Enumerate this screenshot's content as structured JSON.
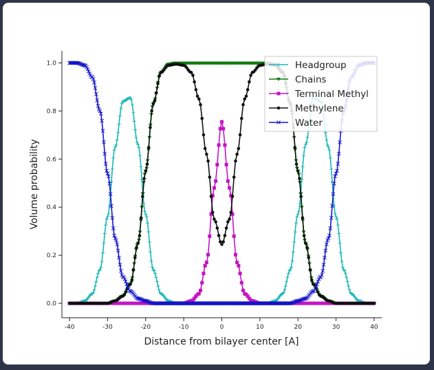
{
  "chart_data": {
    "type": "line",
    "xlabel": "Distance from bilayer center [A]",
    "ylabel": "Volume probability",
    "xlim": [
      -42,
      42
    ],
    "ylim": [
      -0.06,
      1.05
    ],
    "x_ticks": [
      -40,
      -30,
      -20,
      -10,
      0,
      10,
      20,
      30,
      40
    ],
    "y_ticks": [
      0.0,
      0.2,
      0.4,
      0.6,
      0.8,
      1.0
    ],
    "x_tick_labels": [
      "-40",
      "-30",
      "-20",
      "-10",
      "0",
      "10",
      "20",
      "30",
      "40"
    ],
    "y_tick_labels": [
      "0.0",
      "0.2",
      "0.4",
      "0.6",
      "0.8",
      "1.0"
    ],
    "legend": "top-right",
    "grid": false,
    "x": [
      -40,
      -38,
      -36,
      -34,
      -32,
      -30,
      -28,
      -26,
      -24,
      -22,
      -20,
      -18,
      -16,
      -14,
      -12,
      -10,
      -8,
      -6,
      -4,
      -2,
      0,
      2,
      4,
      6,
      8,
      10,
      12,
      14,
      16,
      18,
      20,
      22,
      24,
      26,
      28,
      30,
      32,
      34,
      36,
      38,
      40
    ],
    "series": [
      {
        "name": "Headgroup",
        "color": "#1ab6b6",
        "marker": "plus",
        "values": [
          0.0,
          0.0,
          0.01,
          0.04,
          0.14,
          0.36,
          0.65,
          0.84,
          0.855,
          0.66,
          0.37,
          0.14,
          0.04,
          0.01,
          0.0,
          0.0,
          0.0,
          0.0,
          0.0,
          0.0,
          0.0,
          0.0,
          0.0,
          0.0,
          0.0,
          0.0,
          0.0,
          0.01,
          0.04,
          0.14,
          0.37,
          0.66,
          0.855,
          0.84,
          0.65,
          0.36,
          0.14,
          0.04,
          0.01,
          0.0,
          0.0
        ]
      },
      {
        "name": "Chains",
        "color": "#0e7a0e",
        "marker": "triangle-down",
        "values": [
          0.0,
          0.0,
          0.0,
          0.0,
          0.0,
          0.0,
          0.01,
          0.03,
          0.08,
          0.25,
          0.55,
          0.83,
          0.96,
          0.995,
          1.0,
          1.0,
          1.0,
          1.0,
          1.0,
          1.0,
          1.0,
          1.0,
          1.0,
          1.0,
          1.0,
          1.0,
          1.0,
          0.995,
          0.96,
          0.83,
          0.55,
          0.25,
          0.08,
          0.03,
          0.01,
          0.0,
          0.0,
          0.0,
          0.0,
          0.0,
          0.0
        ]
      },
      {
        "name": "Terminal Methyl",
        "color": "#c414c4",
        "marker": "square",
        "values": [
          0.0,
          0.0,
          0.0,
          0.0,
          0.0,
          0.0,
          0.0,
          0.0,
          0.0,
          0.0,
          0.0,
          0.0,
          0.0,
          0.0,
          0.0,
          0.0,
          0.01,
          0.04,
          0.17,
          0.48,
          0.755,
          0.48,
          0.17,
          0.04,
          0.01,
          0.0,
          0.0,
          0.0,
          0.0,
          0.0,
          0.0,
          0.0,
          0.0,
          0.0,
          0.0,
          0.0,
          0.0,
          0.0,
          0.0,
          0.0,
          0.0
        ]
      },
      {
        "name": "Methylene",
        "color": "#111111",
        "marker": "circle",
        "values": [
          0.0,
          0.0,
          0.0,
          0.0,
          0.0,
          0.0,
          0.01,
          0.03,
          0.08,
          0.25,
          0.55,
          0.83,
          0.96,
          0.99,
          0.995,
          0.99,
          0.96,
          0.85,
          0.62,
          0.35,
          0.245,
          0.35,
          0.62,
          0.85,
          0.96,
          0.99,
          0.995,
          0.99,
          0.96,
          0.83,
          0.55,
          0.25,
          0.08,
          0.03,
          0.01,
          0.0,
          0.0,
          0.0,
          0.0,
          0.0,
          0.0
        ]
      },
      {
        "name": "Water",
        "color": "#1414c8",
        "marker": "x",
        "values": [
          1.0,
          1.0,
          0.99,
          0.94,
          0.8,
          0.54,
          0.27,
          0.11,
          0.05,
          0.02,
          0.01,
          0.0,
          0.0,
          0.0,
          0.0,
          0.0,
          0.0,
          0.0,
          0.0,
          0.0,
          0.0,
          0.0,
          0.0,
          0.0,
          0.0,
          0.0,
          0.0,
          0.0,
          0.0,
          0.0,
          0.01,
          0.02,
          0.05,
          0.11,
          0.27,
          0.54,
          0.8,
          0.94,
          0.99,
          1.0,
          1.0
        ]
      }
    ]
  }
}
